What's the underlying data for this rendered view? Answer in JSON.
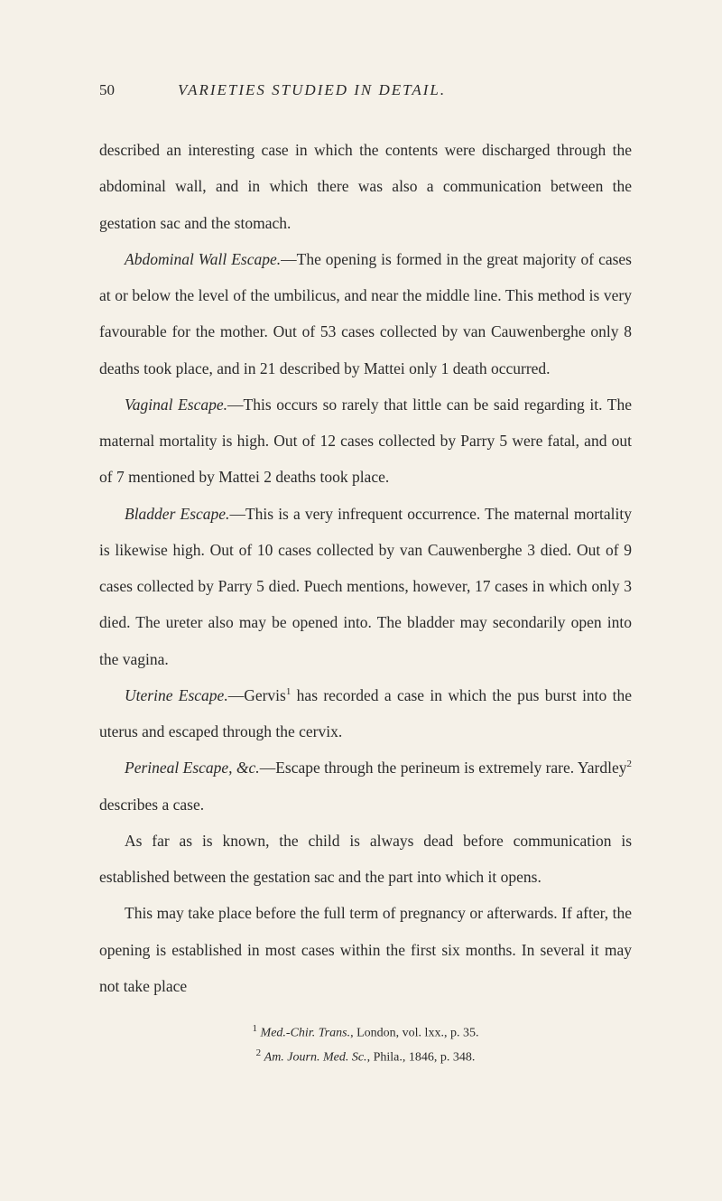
{
  "page": {
    "number": "50",
    "running_title": "VARIETIES STUDIED IN DETAIL."
  },
  "paragraphs": {
    "p1": "described an interesting case in which the contents were discharged through the abdominal wall, and in which there was also a communication between the gestation sac and the stomach.",
    "p2_lead": "Abdominal Wall Escape.",
    "p2_body": "—The opening is formed in the great majority of cases at or below the level of the umbilicus, and near the middle line. This method is very favourable for the mother. Out of 53 cases collected by van Cauwenberghe only 8 deaths took place, and in 21 described by Mattei only 1 death occurred.",
    "p3_lead": "Vaginal Escape.",
    "p3_body": "—This occurs so rarely that little can be said regarding it. The maternal mortality is high. Out of 12 cases collected by Parry 5 were fatal, and out of 7 mentioned by Mattei 2 deaths took place.",
    "p4_lead": "Bladder Escape.",
    "p4_body": "—This is a very infrequent occurrence. The maternal mortality is likewise high. Out of 10 cases collected by van Cauwenberghe 3 died. Out of 9 cases collected by Parry 5 died. Puech mentions, however, 17 cases in which only 3 died. The ureter also may be opened into. The bladder may secondarily open into the vagina.",
    "p5_lead": "Uterine Escape.",
    "p5_body_a": "—Gervis",
    "p5_sup": "1",
    "p5_body_b": " has recorded a case in which the pus burst into the uterus and escaped through the cervix.",
    "p6_lead": "Perineal Escape, &c.",
    "p6_body_a": "—Escape through the perineum is extremely rare. Yardley",
    "p6_sup": "2",
    "p6_body_b": " describes a case.",
    "p7": "As far as is known, the child is always dead before communication is established between the gestation sac and the part into which it opens.",
    "p8": "This may take place before the full term of pregnancy or afterwards. If after, the opening is established in most cases within the first six months. In several it may not take place"
  },
  "footnotes": {
    "f1_sup": "1",
    "f1_lead": "Med.-Chir. Trans.",
    "f1_body": ", London, vol. lxx., p. 35.",
    "f2_sup": "2",
    "f2_lead": "Am. Journ. Med. Sc.",
    "f2_body": ", Phila., 1846, p. 348."
  },
  "colors": {
    "background": "#f5f1e8",
    "text": "#2a2a2a"
  },
  "typography": {
    "body_fontsize": 17.5,
    "header_fontsize": 17,
    "footnote_fontsize": 14,
    "line_height": 2.3
  }
}
